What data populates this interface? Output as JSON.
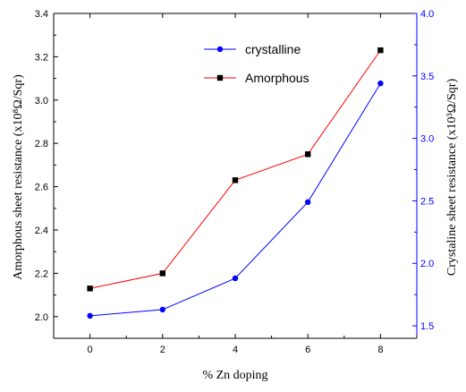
{
  "chart_data": {
    "type": "line",
    "xlabel": "% Zn doping",
    "ylabel_left": "Amorphous sheet resistance (x10⁸Ω/Sqr)",
    "ylabel_right": "Crystaline sheet resistance (x10³Ω/Sqr)",
    "xlim": [
      -1,
      9
    ],
    "ylim_left": [
      1.9,
      3.4
    ],
    "ylim_right": [
      1.4,
      4.0
    ],
    "x_ticks": [
      0,
      2,
      4,
      6,
      8
    ],
    "x_tick_labels": [
      "0",
      "2",
      "4",
      "6",
      "8"
    ],
    "y_left_ticks": [
      2.0,
      2.2,
      2.4,
      2.6,
      2.8,
      3.0,
      3.2,
      3.4
    ],
    "y_left_tick_labels": [
      "2.0",
      "2.2",
      "2.4",
      "2.6",
      "2.8",
      "3.0",
      "3.2",
      "3.4"
    ],
    "y_right_ticks": [
      1.5,
      2.0,
      2.5,
      3.0,
      3.5,
      4.0
    ],
    "y_right_tick_labels": [
      "1.5",
      "2.0",
      "2.5",
      "3.0",
      "3.5",
      "4.0"
    ],
    "legend_position": "top-right",
    "grid": false,
    "series": [
      {
        "name": "crystalline",
        "axis": "right",
        "marker": "circle",
        "line_color": "#0000ff",
        "marker_color": "#0000ff",
        "x": [
          0,
          2,
          4,
          6,
          8
        ],
        "y": [
          1.58,
          1.63,
          1.88,
          2.49,
          3.44
        ]
      },
      {
        "name": "Amorphous",
        "axis": "left",
        "marker": "square",
        "line_color": "#ff0000",
        "marker_color": "#000000",
        "x": [
          0,
          2,
          4,
          6,
          8
        ],
        "y": [
          2.13,
          2.2,
          2.63,
          2.75,
          3.23
        ]
      }
    ],
    "colors": {
      "axis_left": "#000000",
      "axis_right": "#0000ff"
    }
  }
}
